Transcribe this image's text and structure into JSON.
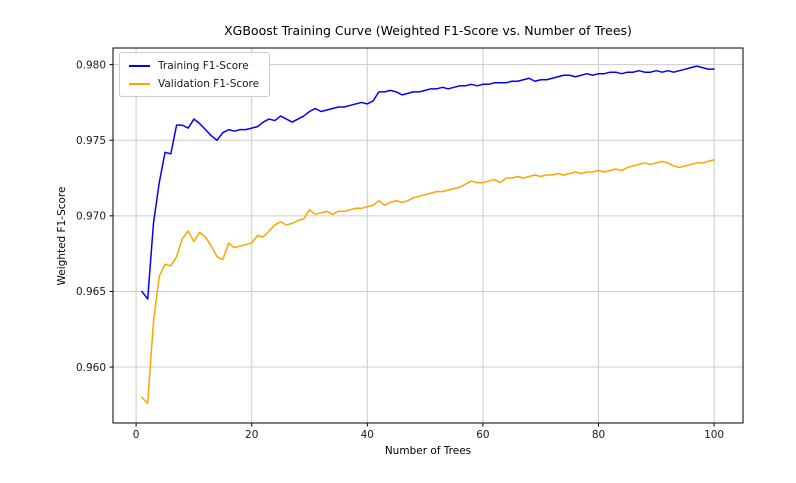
{
  "style": {
    "background": "#ffffff",
    "grid_color": "#cccccc",
    "axis_color": "#000000",
    "tick_label_color": "#1a1a1a"
  },
  "chart_data": {
    "type": "line",
    "title": "XGBoost Training Curve (Weighted F1-Score vs. Number of Trees)",
    "xlabel": "Number of Trees",
    "ylabel": "Weighted F1-Score",
    "grid": true,
    "legend_position": "upper left",
    "xlim": [
      -4,
      105
    ],
    "ylim": [
      0.9563,
      0.9811
    ],
    "xticks": {
      "values": [
        0,
        20,
        40,
        60,
        80,
        100
      ],
      "labels": [
        "0",
        "20",
        "40",
        "60",
        "80",
        "100"
      ]
    },
    "yticks": {
      "values": [
        0.96,
        0.965,
        0.97,
        0.975,
        0.98
      ],
      "labels": [
        "0.960",
        "0.965",
        "0.970",
        "0.975",
        "0.980"
      ]
    },
    "x": [
      1,
      2,
      3,
      4,
      5,
      6,
      7,
      8,
      9,
      10,
      11,
      12,
      13,
      14,
      15,
      16,
      17,
      18,
      19,
      20,
      21,
      22,
      23,
      24,
      25,
      26,
      27,
      28,
      29,
      30,
      31,
      32,
      33,
      34,
      35,
      36,
      37,
      38,
      39,
      40,
      41,
      42,
      43,
      44,
      45,
      46,
      47,
      48,
      49,
      50,
      51,
      52,
      53,
      54,
      55,
      56,
      57,
      58,
      59,
      60,
      61,
      62,
      63,
      64,
      65,
      66,
      67,
      68,
      69,
      70,
      71,
      72,
      73,
      74,
      75,
      76,
      77,
      78,
      79,
      80,
      81,
      82,
      83,
      84,
      85,
      86,
      87,
      88,
      89,
      90,
      91,
      92,
      93,
      94,
      95,
      96,
      97,
      98,
      99,
      100
    ],
    "series": [
      {
        "name": "Training F1-Score",
        "color": "#0000ff",
        "values": [
          0.965,
          0.9645,
          0.9695,
          0.9722,
          0.9742,
          0.9741,
          0.976,
          0.976,
          0.9758,
          0.9764,
          0.9761,
          0.9757,
          0.9753,
          0.975,
          0.9755,
          0.9757,
          0.9756,
          0.9757,
          0.9757,
          0.9758,
          0.9759,
          0.9762,
          0.9764,
          0.9763,
          0.9766,
          0.9764,
          0.9762,
          0.9764,
          0.9766,
          0.9769,
          0.9771,
          0.9769,
          0.977,
          0.9771,
          0.9772,
          0.9772,
          0.9773,
          0.9774,
          0.9775,
          0.9774,
          0.9776,
          0.9782,
          0.9782,
          0.9783,
          0.9782,
          0.978,
          0.9781,
          0.9782,
          0.9782,
          0.9783,
          0.9784,
          0.9784,
          0.9785,
          0.9784,
          0.9785,
          0.9786,
          0.9786,
          0.9787,
          0.9786,
          0.9787,
          0.9787,
          0.9788,
          0.9788,
          0.9788,
          0.9789,
          0.9789,
          0.979,
          0.9791,
          0.9789,
          0.979,
          0.979,
          0.9791,
          0.9792,
          0.9793,
          0.9793,
          0.9792,
          0.9793,
          0.9794,
          0.9793,
          0.9794,
          0.9794,
          0.9795,
          0.9795,
          0.9794,
          0.9795,
          0.9795,
          0.9796,
          0.9795,
          0.9795,
          0.9796,
          0.9795,
          0.9796,
          0.9795,
          0.9796,
          0.9797,
          0.9798,
          0.9799,
          0.9798,
          0.9797,
          0.9797
        ]
      },
      {
        "name": "Validation F1-Score",
        "color": "#ffa500",
        "values": [
          0.958,
          0.9576,
          0.963,
          0.966,
          0.9668,
          0.9667,
          0.9673,
          0.9685,
          0.969,
          0.9683,
          0.9689,
          0.9686,
          0.968,
          0.9673,
          0.9671,
          0.9682,
          0.9679,
          0.968,
          0.9681,
          0.9682,
          0.9687,
          0.9686,
          0.969,
          0.9694,
          0.9696,
          0.9694,
          0.9695,
          0.9697,
          0.9698,
          0.9704,
          0.9701,
          0.9702,
          0.9703,
          0.9701,
          0.9703,
          0.9703,
          0.9704,
          0.9705,
          0.9705,
          0.9706,
          0.9707,
          0.971,
          0.9707,
          0.9709,
          0.971,
          0.9709,
          0.971,
          0.9712,
          0.9713,
          0.9714,
          0.9715,
          0.9716,
          0.9716,
          0.9717,
          0.9718,
          0.9719,
          0.9721,
          0.9723,
          0.9722,
          0.9722,
          0.9723,
          0.9724,
          0.9722,
          0.9725,
          0.9725,
          0.9726,
          0.9725,
          0.9726,
          0.9727,
          0.9726,
          0.9727,
          0.9727,
          0.9728,
          0.9727,
          0.9728,
          0.9729,
          0.9728,
          0.9729,
          0.9729,
          0.973,
          0.9729,
          0.973,
          0.9731,
          0.973,
          0.9732,
          0.9733,
          0.9734,
          0.9735,
          0.9734,
          0.9735,
          0.9736,
          0.9735,
          0.9733,
          0.9732,
          0.9733,
          0.9734,
          0.9735,
          0.9735,
          0.9736,
          0.9737
        ]
      }
    ]
  }
}
